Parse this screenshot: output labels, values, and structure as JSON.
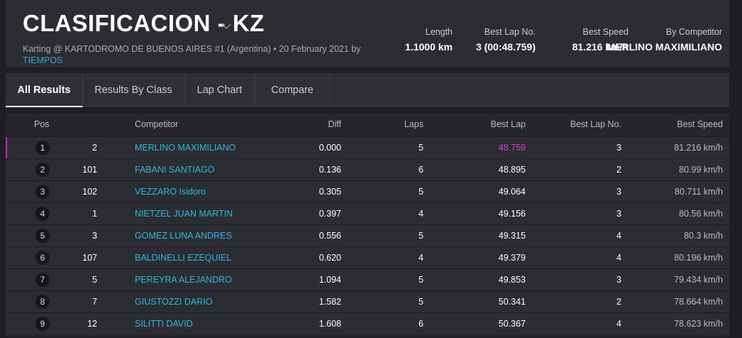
{
  "header": {
    "title": "CLASIFICACION - KZ",
    "subtitle": "Karting @ KARTODROMO DE BUENOS AIRES #1 (Argentina) • 20 February 2021 by",
    "link": "TIEMPOS"
  },
  "stats": [
    {
      "label": "Length",
      "value": "1.1000 km"
    },
    {
      "label": "Best Lap No.",
      "value": "3 (00:48.759)"
    },
    {
      "label": "Best Speed",
      "value": "81.216 km/h"
    },
    {
      "label": "By Competitor",
      "value": "MERLINO MAXIMILIANO"
    }
  ],
  "tabs": [
    "All Results",
    "Results By Class",
    "Lap Chart",
    "Compare"
  ],
  "table": {
    "columns": [
      "Pos",
      "Competitor",
      "Diff",
      "Laps",
      "Best Lap",
      "Best Lap No.",
      "Best Speed"
    ],
    "rows": [
      [
        "1",
        "2",
        "MERLINO MAXIMILIANO",
        "0.000",
        "5",
        "48.759",
        "3",
        "81.216 km/h"
      ],
      [
        "2",
        "101",
        "FABANI SANTIAGO",
        "0.136",
        "6",
        "48.895",
        "2",
        "80.99 km/h"
      ],
      [
        "3",
        "102",
        "VEZZARO Isidoro",
        "0.305",
        "5",
        "49.064",
        "3",
        "80.711 km/h"
      ],
      [
        "4",
        "1",
        "NIETZEL JUAN MARTIN",
        "0.397",
        "4",
        "49.156",
        "3",
        "80.56 km/h"
      ],
      [
        "5",
        "3",
        "GOMEZ LUNA ANDRES",
        "0.556",
        "5",
        "49.315",
        "4",
        "80.3 km/h"
      ],
      [
        "6",
        "107",
        "BALDINELLI EZEQUIEL",
        "0.620",
        "4",
        "49.379",
        "4",
        "80.196 km/h"
      ],
      [
        "7",
        "5",
        "PEREYRA ALEJANDRO",
        "1.094",
        "5",
        "49.853",
        "3",
        "79.434 km/h"
      ],
      [
        "8",
        "7",
        "GIUSTOZZI DARIO",
        "1.582",
        "5",
        "50.341",
        "2",
        "78.664 km/h"
      ],
      [
        "9",
        "12",
        "SILITTI DAVID",
        "1.608",
        "6",
        "50.367",
        "4",
        "78.623 km/h"
      ]
    ]
  }
}
